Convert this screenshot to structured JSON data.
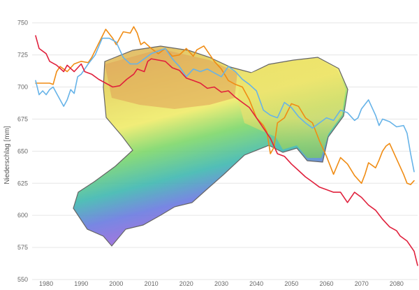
{
  "chart_data": {
    "type": "line",
    "title": "",
    "xlabel": "",
    "ylabel": "Niederschlag [mm]",
    "xlim": [
      1976,
      2086
    ],
    "ylim": [
      550,
      758
    ],
    "grid": "horizontal",
    "legend": "none",
    "x_ticks": [
      "1980",
      "1990",
      "2000",
      "2010",
      "2020",
      "2030",
      "2040",
      "2050",
      "2060",
      "2070",
      "2080"
    ],
    "y_ticks": [
      "550",
      "575",
      "600",
      "625",
      "650",
      "675",
      "700",
      "725",
      "750"
    ],
    "background_image": "Saxony precipitation relief map",
    "series": [
      {
        "color": "#f08c14",
        "points": [
          [
            1977,
            703
          ],
          [
            1979,
            703
          ],
          [
            1981,
            703
          ],
          [
            1982,
            702
          ],
          [
            1983,
            712
          ],
          [
            1984,
            716
          ],
          [
            1985,
            714
          ],
          [
            1986,
            712
          ],
          [
            1988,
            718
          ],
          [
            1990,
            720
          ],
          [
            1992,
            719
          ],
          [
            1993,
            723
          ],
          [
            1995,
            734
          ],
          [
            1997,
            745
          ],
          [
            1999,
            738
          ],
          [
            2000,
            733
          ],
          [
            2002,
            743
          ],
          [
            2004,
            742
          ],
          [
            2005,
            747
          ],
          [
            2006,
            742
          ],
          [
            2007,
            733
          ],
          [
            2008,
            735
          ],
          [
            2010,
            730
          ],
          [
            2012,
            726
          ],
          [
            2014,
            730
          ],
          [
            2016,
            724
          ],
          [
            2018,
            725
          ],
          [
            2020,
            730
          ],
          [
            2022,
            724
          ],
          [
            2023,
            729
          ],
          [
            2025,
            732
          ],
          [
            2027,
            724
          ],
          [
            2028,
            720
          ],
          [
            2030,
            714
          ],
          [
            2032,
            705
          ],
          [
            2034,
            702
          ],
          [
            2036,
            700
          ],
          [
            2038,
            690
          ],
          [
            2040,
            676
          ],
          [
            2042,
            670
          ],
          [
            2043,
            665
          ],
          [
            2044,
            648
          ],
          [
            2045,
            653
          ],
          [
            2046,
            672
          ],
          [
            2048,
            676
          ],
          [
            2050,
            687
          ],
          [
            2052,
            685
          ],
          [
            2054,
            676
          ],
          [
            2056,
            672
          ],
          [
            2058,
            658
          ],
          [
            2060,
            646
          ],
          [
            2062,
            632
          ],
          [
            2064,
            645
          ],
          [
            2066,
            640
          ],
          [
            2068,
            631
          ],
          [
            2069,
            628
          ],
          [
            2070,
            625
          ],
          [
            2071,
            632
          ],
          [
            2072,
            641
          ],
          [
            2074,
            637
          ],
          [
            2075,
            643
          ],
          [
            2076,
            650
          ],
          [
            2077,
            654
          ],
          [
            2078,
            656
          ],
          [
            2080,
            644
          ],
          [
            2082,
            632
          ],
          [
            2083,
            625
          ],
          [
            2084,
            624
          ],
          [
            2085,
            627
          ]
        ]
      },
      {
        "color": "#66b3e8",
        "points": [
          [
            1977,
            705
          ],
          [
            1978,
            694
          ],
          [
            1979,
            697
          ],
          [
            1980,
            694
          ],
          [
            1981,
            698
          ],
          [
            1982,
            700
          ],
          [
            1983,
            695
          ],
          [
            1984,
            690
          ],
          [
            1985,
            685
          ],
          [
            1986,
            690
          ],
          [
            1987,
            698
          ],
          [
            1988,
            695
          ],
          [
            1989,
            708
          ],
          [
            1990,
            710
          ],
          [
            1992,
            718
          ],
          [
            1994,
            725
          ],
          [
            1996,
            738
          ],
          [
            1998,
            738
          ],
          [
            2000,
            735
          ],
          [
            2002,
            723
          ],
          [
            2004,
            718
          ],
          [
            2006,
            718
          ],
          [
            2008,
            722
          ],
          [
            2010,
            726
          ],
          [
            2012,
            728
          ],
          [
            2014,
            730
          ],
          [
            2016,
            722
          ],
          [
            2018,
            716
          ],
          [
            2020,
            708
          ],
          [
            2022,
            714
          ],
          [
            2024,
            712
          ],
          [
            2026,
            714
          ],
          [
            2028,
            711
          ],
          [
            2030,
            708
          ],
          [
            2032,
            716
          ],
          [
            2034,
            712
          ],
          [
            2036,
            706
          ],
          [
            2038,
            702
          ],
          [
            2040,
            697
          ],
          [
            2042,
            682
          ],
          [
            2044,
            678
          ],
          [
            2046,
            676
          ],
          [
            2048,
            688
          ],
          [
            2050,
            684
          ],
          [
            2052,
            677
          ],
          [
            2054,
            672
          ],
          [
            2056,
            668
          ],
          [
            2058,
            672
          ],
          [
            2060,
            676
          ],
          [
            2062,
            674
          ],
          [
            2064,
            682
          ],
          [
            2066,
            680
          ],
          [
            2068,
            674
          ],
          [
            2069,
            676
          ],
          [
            2070,
            683
          ],
          [
            2072,
            690
          ],
          [
            2074,
            678
          ],
          [
            2075,
            670
          ],
          [
            2076,
            675
          ],
          [
            2078,
            673
          ],
          [
            2080,
            669
          ],
          [
            2082,
            670
          ],
          [
            2083,
            664
          ],
          [
            2084,
            648
          ],
          [
            2085,
            634
          ]
        ]
      },
      {
        "color": "#e0203c",
        "points": [
          [
            1977,
            740
          ],
          [
            1978,
            730
          ],
          [
            1980,
            726
          ],
          [
            1981,
            720
          ],
          [
            1983,
            717
          ],
          [
            1985,
            712
          ],
          [
            1986,
            717
          ],
          [
            1988,
            712
          ],
          [
            1990,
            718
          ],
          [
            1991,
            712
          ],
          [
            1993,
            710
          ],
          [
            1995,
            706
          ],
          [
            1997,
            703
          ],
          [
            1999,
            700
          ],
          [
            2001,
            701
          ],
          [
            2003,
            706
          ],
          [
            2005,
            710
          ],
          [
            2006,
            714
          ],
          [
            2008,
            712
          ],
          [
            2009,
            720
          ],
          [
            2010,
            722
          ],
          [
            2012,
            721
          ],
          [
            2014,
            720
          ],
          [
            2016,
            715
          ],
          [
            2018,
            713
          ],
          [
            2020,
            707
          ],
          [
            2022,
            705
          ],
          [
            2024,
            703
          ],
          [
            2026,
            699
          ],
          [
            2028,
            700
          ],
          [
            2030,
            696
          ],
          [
            2032,
            697
          ],
          [
            2034,
            692
          ],
          [
            2036,
            688
          ],
          [
            2038,
            684
          ],
          [
            2040,
            676
          ],
          [
            2042,
            668
          ],
          [
            2044,
            660
          ],
          [
            2046,
            648
          ],
          [
            2048,
            646
          ],
          [
            2050,
            640
          ],
          [
            2052,
            635
          ],
          [
            2054,
            630
          ],
          [
            2056,
            626
          ],
          [
            2058,
            622
          ],
          [
            2060,
            620
          ],
          [
            2062,
            618
          ],
          [
            2064,
            618
          ],
          [
            2066,
            610
          ],
          [
            2068,
            618
          ],
          [
            2070,
            614
          ],
          [
            2072,
            608
          ],
          [
            2074,
            604
          ],
          [
            2076,
            597
          ],
          [
            2078,
            591
          ],
          [
            2080,
            588
          ],
          [
            2081,
            584
          ],
          [
            2083,
            580
          ],
          [
            2085,
            572
          ],
          [
            2086,
            561
          ]
        ]
      }
    ]
  }
}
